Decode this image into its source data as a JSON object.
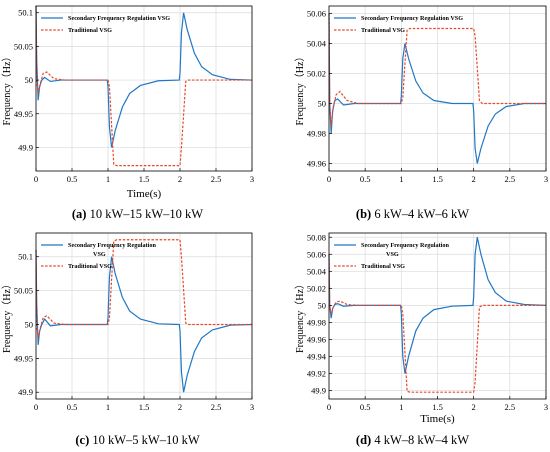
{
  "figure": {
    "captions": [
      {
        "tag": "(a)",
        "text": "10 kW–15 kW–10 kW"
      },
      {
        "tag": "(b)",
        "text": "6 kW–4 kW–6 kW"
      },
      {
        "tag": "(c)",
        "text": "10 kW–5 kW–10 kW"
      },
      {
        "tag": "(d)",
        "text": "4 kW–8 kW–4 kW"
      }
    ]
  },
  "chart_data": [
    {
      "type": "line",
      "xlabel": "Time(s)",
      "ylabel": "Frequency（Hz）",
      "xlim": [
        0,
        3
      ],
      "ylim": [
        49.865,
        50.11
      ],
      "xticks": [
        "0",
        "0.5",
        "1",
        "1.5",
        "2",
        "2.5",
        "3"
      ],
      "yticks": [
        "49.9",
        "49.95",
        "50",
        "50.05",
        "50.1"
      ],
      "grid": true,
      "legend_position": "top-left",
      "series": [
        {
          "name": "Secondary Frequency Regulation VSG",
          "color": "#2177c4",
          "dash": "solid",
          "x": [
            0,
            0.01,
            0.03,
            0.05,
            0.08,
            0.12,
            0.2,
            0.35,
            0.6,
            0.99,
            1.0,
            1.02,
            1.05,
            1.1,
            1.2,
            1.3,
            1.45,
            1.7,
            1.99,
            2.0,
            2.02,
            2.05,
            2.1,
            2.2,
            2.3,
            2.45,
            2.7,
            3.0
          ],
          "y": [
            50.11,
            50.03,
            49.97,
            49.99,
            50.0,
            50.004,
            49.998,
            50.0,
            50.0,
            50.0,
            49.99,
            49.93,
            49.9,
            49.925,
            49.96,
            49.98,
            49.992,
            49.999,
            50.0,
            50.01,
            50.07,
            50.1,
            50.075,
            50.04,
            50.02,
            50.008,
            50.001,
            50.0
          ]
        },
        {
          "name": "Traditional VSG",
          "color": "#e8482a",
          "dash": "dashed",
          "x": [
            0,
            0.01,
            0.03,
            0.06,
            0.1,
            0.15,
            0.25,
            0.4,
            1.0,
            1.02,
            1.08,
            1.12,
            2.0,
            2.02,
            2.08,
            2.12,
            3.0
          ],
          "y": [
            50.11,
            50.0,
            49.98,
            49.995,
            50.01,
            50.012,
            50.002,
            50.0,
            50.0,
            49.99,
            49.875,
            49.873,
            49.873,
            49.9,
            49.998,
            50.0,
            50.0
          ]
        }
      ]
    },
    {
      "type": "line",
      "xlabel": "",
      "ylabel": "Frequency（Hz）",
      "xlim": [
        0,
        3
      ],
      "ylim": [
        49.955,
        50.065
      ],
      "xticks": [
        "0",
        "0.5",
        "1",
        "1.5",
        "2",
        "2.5",
        "3"
      ],
      "yticks": [
        "49.96",
        "49.98",
        "50",
        "50.02",
        "50.04",
        "50.06"
      ],
      "grid": true,
      "legend_position": "top-left",
      "series": [
        {
          "name": "Secondary Frequency Regulation VSG",
          "color": "#2177c4",
          "dash": "solid",
          "x": [
            0,
            0.01,
            0.03,
            0.05,
            0.08,
            0.12,
            0.2,
            0.35,
            0.6,
            0.99,
            1.0,
            1.02,
            1.05,
            1.1,
            1.2,
            1.3,
            1.45,
            1.7,
            1.99,
            2.0,
            2.02,
            2.05,
            2.1,
            2.2,
            2.3,
            2.45,
            2.7,
            3.0
          ],
          "y": [
            50.06,
            50.0,
            49.98,
            49.995,
            50.002,
            50.003,
            49.999,
            50.0,
            50.0,
            50.0,
            50.005,
            50.03,
            50.04,
            50.03,
            50.015,
            50.007,
            50.002,
            50.0,
            50.0,
            49.995,
            49.97,
            49.96,
            49.97,
            49.985,
            49.993,
            49.998,
            50.0,
            50.0
          ]
        },
        {
          "name": "Traditional VSG",
          "color": "#e8482a",
          "dash": "dashed",
          "x": [
            0,
            0.01,
            0.03,
            0.06,
            0.1,
            0.15,
            0.25,
            0.4,
            1.0,
            1.02,
            1.08,
            1.12,
            2.0,
            2.02,
            2.08,
            2.12,
            3.0
          ],
          "y": [
            50.06,
            50.0,
            49.985,
            49.998,
            50.006,
            50.008,
            50.002,
            50.0,
            50.0,
            50.004,
            50.049,
            50.05,
            50.05,
            50.045,
            50.002,
            50.0,
            50.0
          ]
        }
      ]
    },
    {
      "type": "line",
      "xlabel": "",
      "ylabel": "Frequency（Hz）",
      "xlim": [
        0,
        3
      ],
      "ylim": [
        49.89,
        50.135
      ],
      "xticks": [
        "0",
        "0.5",
        "1",
        "1.5",
        "2",
        "2.5",
        "3"
      ],
      "yticks": [
        "49.9",
        "49.95",
        "50",
        "50.05",
        "50.1"
      ],
      "grid": true,
      "legend_position": "top-left",
      "series": [
        {
          "name": "Secondary Frequency Regulation VSG",
          "color": "#2177c4",
          "dash": "solid",
          "x": [
            0,
            0.01,
            0.03,
            0.05,
            0.08,
            0.12,
            0.2,
            0.35,
            0.6,
            0.99,
            1.0,
            1.02,
            1.05,
            1.1,
            1.2,
            1.3,
            1.45,
            1.7,
            1.99,
            2.0,
            2.02,
            2.05,
            2.1,
            2.2,
            2.3,
            2.45,
            2.7,
            3.0
          ],
          "y": [
            50.11,
            50.03,
            49.97,
            49.99,
            50.0,
            50.008,
            49.998,
            50.0,
            50.0,
            50.0,
            50.01,
            50.07,
            50.1,
            50.075,
            50.04,
            50.02,
            50.008,
            50.001,
            50.0,
            49.99,
            49.93,
            49.9,
            49.925,
            49.96,
            49.98,
            49.992,
            49.999,
            50.0
          ]
        },
        {
          "name": "Traditional VSG",
          "color": "#e8482a",
          "dash": "dashed",
          "x": [
            0,
            0.01,
            0.03,
            0.06,
            0.1,
            0.15,
            0.25,
            0.4,
            1.0,
            1.02,
            1.08,
            1.12,
            2.0,
            2.02,
            2.08,
            2.12,
            3.0
          ],
          "y": [
            50.11,
            50.0,
            49.98,
            49.995,
            50.01,
            50.013,
            50.002,
            50.0,
            50.0,
            50.01,
            50.123,
            50.125,
            50.125,
            50.1,
            50.002,
            50.0,
            50.0
          ]
        }
      ]
    },
    {
      "type": "line",
      "xlabel": "",
      "ylabel": "Frequency（Hz）",
      "xlim": [
        0,
        3
      ],
      "ylim": [
        49.89,
        50.085
      ],
      "xticks": [
        "0",
        "0.5",
        "1",
        "1.5",
        "2",
        "2.5",
        "3"
      ],
      "yticks": [
        "49.9",
        "49.92",
        "49.94",
        "49.96",
        "49.98",
        "50",
        "50.02",
        "50.04",
        "50.06",
        "50.08"
      ],
      "grid": true,
      "legend_position": "top-left",
      "series": [
        {
          "name": "Secondary Frequency Regulation VSG",
          "color": "#2177c4",
          "dash": "solid",
          "x": [
            0,
            0.01,
            0.03,
            0.05,
            0.08,
            0.12,
            0.2,
            0.35,
            0.6,
            0.99,
            1.0,
            1.02,
            1.05,
            1.1,
            1.2,
            1.3,
            1.45,
            1.7,
            1.99,
            2.0,
            2.02,
            2.05,
            2.1,
            2.2,
            2.3,
            2.45,
            2.7,
            3.0
          ],
          "y": [
            50.06,
            50.0,
            49.985,
            49.996,
            50.001,
            50.002,
            49.999,
            50.0,
            50.0,
            50.0,
            49.99,
            49.94,
            49.92,
            49.94,
            49.97,
            49.985,
            49.995,
            49.999,
            50.0,
            50.01,
            50.06,
            50.08,
            50.06,
            50.03,
            50.015,
            50.005,
            50.001,
            50.0
          ]
        },
        {
          "name": "Traditional VSG",
          "color": "#e8482a",
          "dash": "dashed",
          "x": [
            0,
            0.01,
            0.03,
            0.06,
            0.1,
            0.15,
            0.25,
            0.4,
            1.0,
            1.02,
            1.08,
            1.12,
            2.0,
            2.02,
            2.08,
            2.12,
            3.0
          ],
          "y": [
            50.06,
            50.0,
            49.99,
            49.998,
            50.004,
            50.005,
            50.001,
            50.0,
            50.0,
            49.99,
            49.899,
            49.898,
            49.898,
            49.91,
            49.998,
            50.0,
            50.0
          ]
        }
      ]
    }
  ]
}
